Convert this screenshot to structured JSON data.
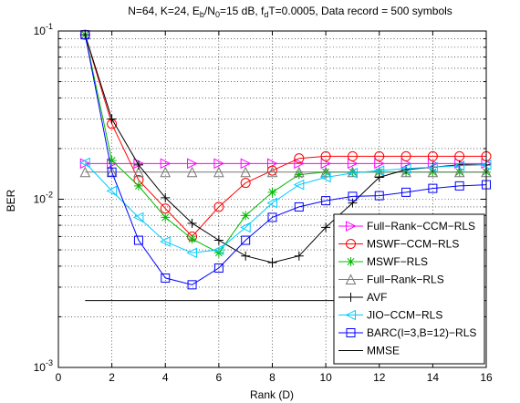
{
  "chart_data": {
    "type": "line",
    "title": {
      "parts": [
        {
          "t": "N=64, K=24, E"
        },
        {
          "t": "b",
          "sub": true
        },
        {
          "t": "/N"
        },
        {
          "t": "0",
          "sub": true
        },
        {
          "t": "=15 dB, f"
        },
        {
          "t": "d",
          "sub": true
        },
        {
          "t": "T=0.0005, Data record = 500 symbols"
        }
      ]
    },
    "xlabel": "Rank (D)",
    "ylabel": "BER",
    "xlim": [
      0,
      16
    ],
    "ylim": [
      0.001,
      0.1
    ],
    "yscale": "log",
    "grid": true,
    "legend_position": "lower-right",
    "xticks": [
      0,
      2,
      4,
      6,
      8,
      10,
      12,
      14,
      16
    ],
    "xtick_labels": [
      "0",
      "2",
      "4",
      "6",
      "8",
      "10",
      "12",
      "14",
      "16"
    ],
    "ytick_labels": [
      {
        "base": "10",
        "exp": "-3",
        "value": 0.001
      },
      {
        "base": "10",
        "exp": "-2",
        "value": 0.01
      },
      {
        "base": "10",
        "exp": "-1",
        "value": 0.1
      }
    ],
    "series": [
      {
        "name": "Full−Rank−CCM−RLS",
        "color": "#ff00ff",
        "marker": "triangle-right",
        "x": [
          1,
          2,
          3,
          4,
          5,
          6,
          7,
          8,
          9,
          10,
          11,
          12,
          13,
          14,
          15,
          16
        ],
        "y": [
          0.0163,
          0.0163,
          0.0163,
          0.0163,
          0.0163,
          0.0163,
          0.0163,
          0.0163,
          0.0163,
          0.0163,
          0.0163,
          0.0163,
          0.0163,
          0.0163,
          0.0163,
          0.0163
        ]
      },
      {
        "name": "MSWF−CCM−RLS",
        "color": "#ff0000",
        "marker": "circle",
        "x": [
          1,
          2,
          3,
          4,
          5,
          6,
          7,
          8,
          9,
          10,
          11,
          12,
          13,
          14,
          15,
          16
        ],
        "y": [
          0.095,
          0.028,
          0.013,
          0.0088,
          0.006,
          0.009,
          0.0125,
          0.0148,
          0.0175,
          0.018,
          0.018,
          0.018,
          0.018,
          0.018,
          0.018,
          0.018
        ]
      },
      {
        "name": "MSWF−RLS",
        "color": "#00bb00",
        "marker": "asterisk",
        "x": [
          1,
          2,
          3,
          4,
          5,
          6,
          7,
          8,
          9,
          10,
          11,
          12,
          13,
          14,
          15,
          16
        ],
        "y": [
          0.095,
          0.017,
          0.012,
          0.0078,
          0.0058,
          0.0048,
          0.008,
          0.011,
          0.014,
          0.0145,
          0.0145,
          0.0145,
          0.0145,
          0.0145,
          0.0145,
          0.0145
        ]
      },
      {
        "name": "Full−Rank−RLS",
        "color": "#777777",
        "marker": "triangle-up",
        "x": [
          1,
          2,
          3,
          4,
          5,
          6,
          7,
          8,
          9,
          10,
          11,
          12,
          13,
          14,
          15,
          16
        ],
        "y": [
          0.0145,
          0.0145,
          0.0145,
          0.0145,
          0.0145,
          0.0145,
          0.0145,
          0.0145,
          0.0145,
          0.0145,
          0.0145,
          0.0145,
          0.0145,
          0.0145,
          0.0145,
          0.0145
        ]
      },
      {
        "name": "AVF",
        "color": "#000000",
        "marker": "plus",
        "x": [
          1,
          2,
          3,
          4,
          5,
          6,
          7,
          8,
          9,
          10,
          11,
          12,
          13,
          14,
          15,
          16
        ],
        "y": [
          0.095,
          0.03,
          0.016,
          0.0102,
          0.0072,
          0.0057,
          0.0046,
          0.0042,
          0.0046,
          0.0068,
          0.0095,
          0.0135,
          0.015,
          0.0155,
          0.016,
          0.016
        ]
      },
      {
        "name": "JIO−CCM−RLS",
        "color": "#00ccff",
        "marker": "triangle-left",
        "x": [
          1,
          2,
          3,
          4,
          5,
          6,
          7,
          8,
          9,
          10,
          11,
          12,
          13,
          14,
          15,
          16
        ],
        "y": [
          0.0165,
          0.0112,
          0.0078,
          0.0056,
          0.0048,
          0.005,
          0.0068,
          0.0095,
          0.0122,
          0.0135,
          0.0143,
          0.0148,
          0.0152,
          0.0155,
          0.0158,
          0.016
        ]
      },
      {
        "name": "BARC(I=3,B=12)−RLS",
        "color": "#0000ff",
        "marker": "square",
        "x": [
          1,
          2,
          3,
          4,
          5,
          6,
          7,
          8,
          9,
          10,
          11,
          12,
          13,
          14,
          15,
          16
        ],
        "y": [
          0.095,
          0.0145,
          0.0057,
          0.0034,
          0.0031,
          0.0039,
          0.0057,
          0.0078,
          0.009,
          0.0098,
          0.0104,
          0.0105,
          0.011,
          0.0116,
          0.012,
          0.0122
        ]
      },
      {
        "name": "MMSE",
        "color": "#000000",
        "marker": "none",
        "x": [
          1,
          16
        ],
        "y": [
          0.0025,
          0.0025
        ]
      }
    ]
  }
}
